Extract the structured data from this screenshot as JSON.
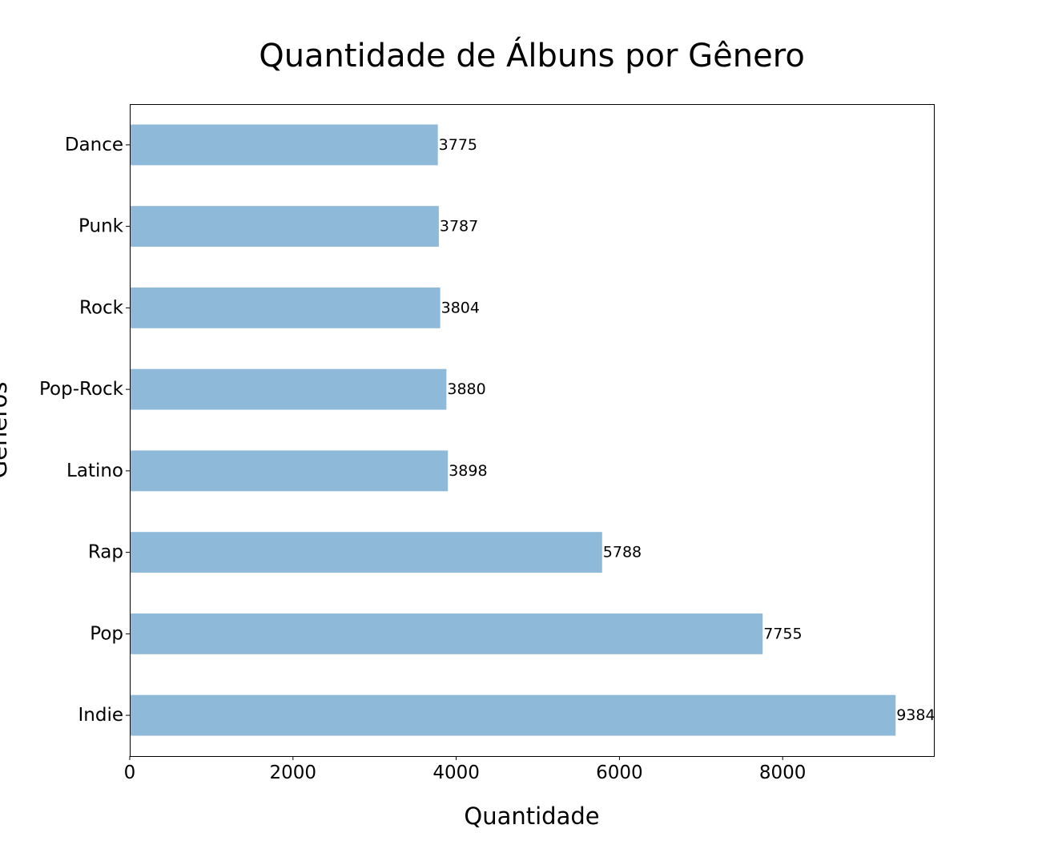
{
  "chart_data": {
    "type": "bar",
    "orientation": "horizontal",
    "title": "Quantidade de Álbuns por Gênero",
    "xlabel": "Quantidade",
    "ylabel": "Gêneros",
    "categories": [
      "Indie",
      "Pop",
      "Rap",
      "Latino",
      "Pop-Rock",
      "Rock",
      "Punk",
      "Dance"
    ],
    "values": [
      9384,
      7755,
      5788,
      3898,
      3880,
      3804,
      3787,
      3775
    ],
    "value_labels": [
      "9384",
      "7755",
      "5788",
      "3898",
      "3880",
      "3804",
      "3787",
      "3775"
    ],
    "xticks": [
      0,
      2000,
      4000,
      6000,
      8000
    ],
    "xtick_labels": [
      "0",
      "2000",
      "4000",
      "6000",
      "8000"
    ],
    "xlim": [
      0,
      9853
    ],
    "grid": false,
    "legend": "none",
    "bar_color": "#8eb9d9",
    "text_color": "#000000",
    "frame_color": "#000000"
  }
}
